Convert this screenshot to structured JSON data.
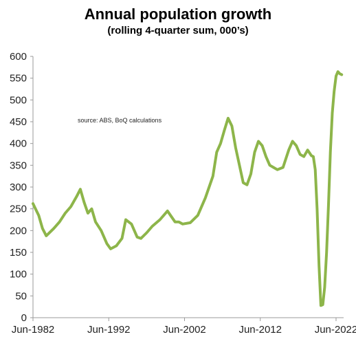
{
  "chart_data": {
    "type": "line",
    "title": "Annual population growth",
    "subtitle": "(rolling 4-quarter sum, 000’s)",
    "annotation": "source:  ABS, BoQ calculations",
    "xlabel": "",
    "ylabel": "",
    "ylim": [
      0,
      600
    ],
    "yticks": [
      0,
      50,
      100,
      150,
      200,
      250,
      300,
      350,
      400,
      450,
      500,
      550,
      600
    ],
    "xlim": [
      "1982-06",
      "2023-06"
    ],
    "xtick_labels": [
      "Jun-1982",
      "Jun-1992",
      "Jun-2002",
      "Jun-2012",
      "Jun-2022"
    ],
    "xtick_dates": [
      "1982-06",
      "1992-06",
      "2002-06",
      "2012-06",
      "2022-06"
    ],
    "grid": false,
    "line_color": "#8db54a",
    "series": [
      {
        "x": [
          "1982-06",
          "1983-03",
          "1983-09",
          "1984-03",
          "1985-03",
          "1985-12",
          "1986-09",
          "1987-06",
          "1988-03",
          "1988-09",
          "1989-03",
          "1989-09",
          "1990-03",
          "1990-09",
          "1991-06",
          "1992-03",
          "1992-09",
          "1993-06",
          "1994-03",
          "1994-09",
          "1995-06",
          "1996-03",
          "1996-09",
          "1997-06",
          "1998-03",
          "1999-03",
          "2000-03",
          "2001-03",
          "2001-09",
          "2002-03",
          "2003-03",
          "2004-03",
          "2005-03",
          "2006-03",
          "2006-09",
          "2007-03",
          "2007-09",
          "2008-03",
          "2008-09",
          "2009-03",
          "2009-09",
          "2010-03",
          "2010-09",
          "2011-03",
          "2011-09",
          "2012-03",
          "2012-09",
          "2013-03",
          "2013-09",
          "2014-03",
          "2014-09",
          "2015-06",
          "2016-03",
          "2016-09",
          "2017-03",
          "2017-09",
          "2018-03",
          "2018-09",
          "2019-03",
          "2019-06",
          "2019-09",
          "2019-12",
          "2020-03",
          "2020-06",
          "2020-09",
          "2020-12",
          "2021-03",
          "2021-06",
          "2021-09",
          "2021-12",
          "2022-03",
          "2022-06",
          "2022-09",
          "2022-12",
          "2023-03"
        ],
        "y": [
          262,
          235,
          205,
          188,
          205,
          220,
          240,
          255,
          278,
          295,
          265,
          240,
          250,
          220,
          200,
          170,
          158,
          165,
          182,
          225,
          215,
          185,
          182,
          195,
          210,
          225,
          245,
          220,
          220,
          215,
          218,
          235,
          275,
          325,
          380,
          400,
          430,
          458,
          440,
          390,
          350,
          310,
          305,
          330,
          380,
          405,
          395,
          370,
          350,
          345,
          340,
          345,
          385,
          405,
          395,
          375,
          370,
          385,
          372,
          370,
          340,
          250,
          120,
          28,
          30,
          70,
          150,
          260,
          380,
          470,
          520,
          555,
          565,
          560,
          558
        ]
      }
    ]
  }
}
